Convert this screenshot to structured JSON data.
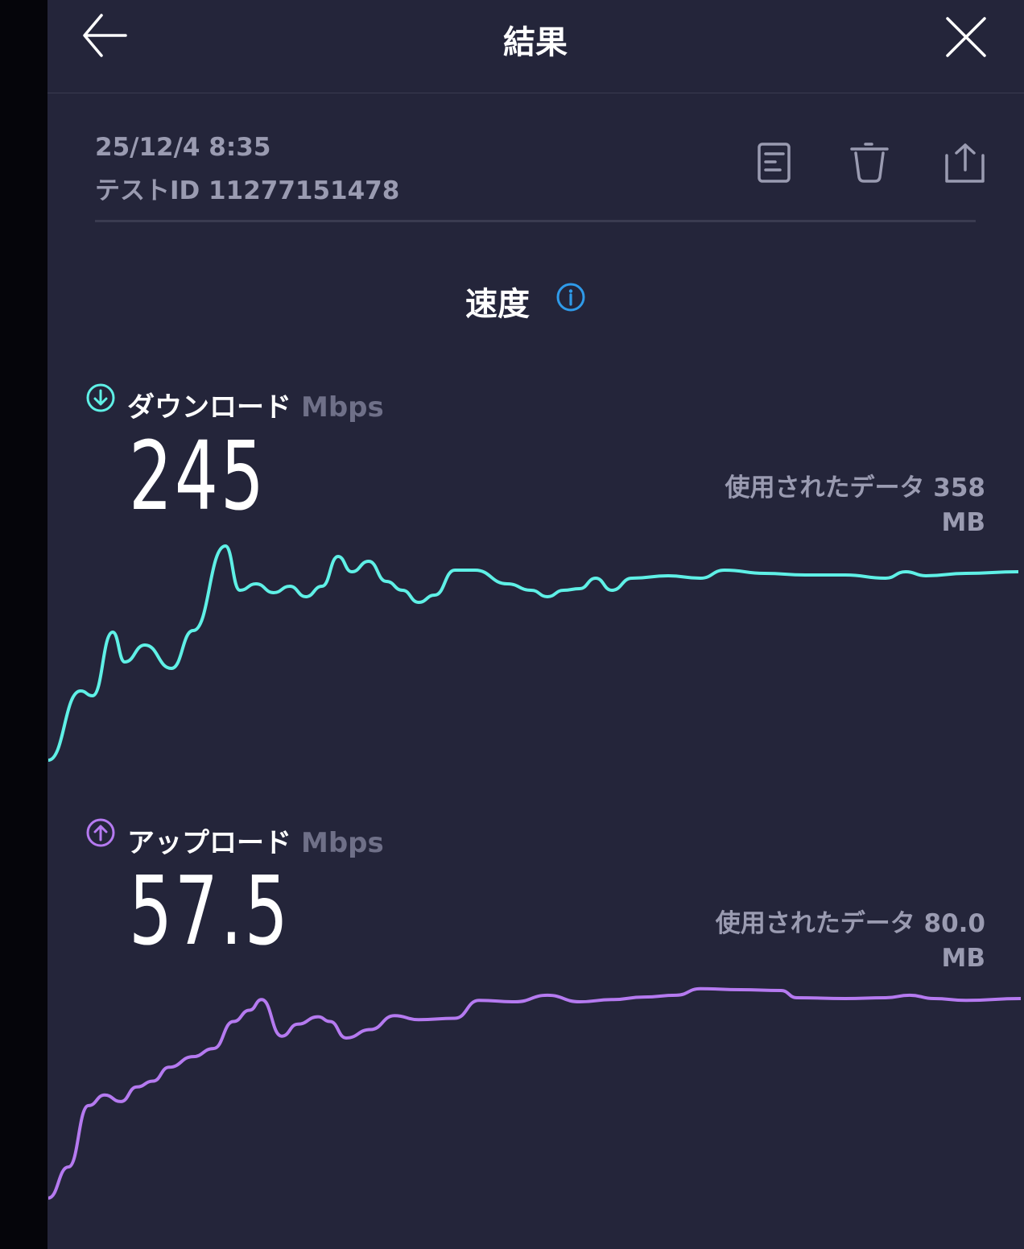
{
  "header": {
    "title": "結果",
    "back_icon": "arrow-left-icon",
    "close_icon": "close-icon"
  },
  "meta": {
    "datetime": "25/12/4 8:35",
    "test_id": "テストID 11277151478"
  },
  "actions": [
    {
      "icon": "document-icon"
    },
    {
      "icon": "trash-icon"
    },
    {
      "icon": "share-icon"
    }
  ],
  "speed": {
    "title": "速度",
    "info_icon": "info-icon"
  },
  "download": {
    "label": "ダウンロード",
    "unit": "Mbps",
    "value": "245",
    "data_used_label": "使用されたデータ 358",
    "data_used_unit": "MB",
    "color": "#5ff0e6"
  },
  "upload": {
    "label": "アップロード",
    "unit": "Mbps",
    "value": "57.5",
    "data_used_label": "使用されたデータ 80.0",
    "data_used_unit": "MB",
    "color": "#b57af0"
  },
  "chart_data": [
    {
      "type": "line",
      "series": [
        {
          "values": [
            16,
            102,
            96,
            175,
            138,
            159,
            130,
            177,
            282,
            227,
            235,
            224,
            232,
            219,
            232,
            269,
            250,
            263,
            238,
            227,
            212,
            221,
            252,
            252,
            235,
            227,
            219,
            227,
            229,
            242,
            227,
            242,
            245,
            242,
            252,
            248,
            246,
            246,
            242,
            250,
            245,
            248,
            250
          ]
        }
      ],
      "ylim": [
        0,
        300
      ],
      "grid": false
    },
    {
      "type": "line",
      "series": [
        {
          "values": [
            2.7,
            11.2,
            28.0,
            30.9,
            29.1,
            33.1,
            34.7,
            38.5,
            41.4,
            43.6,
            51.0,
            54.1,
            57.0,
            47.0,
            50.3,
            52.3,
            51.0,
            46.5,
            48.8,
            52.6,
            51.5,
            51.9,
            56.8,
            56.4,
            58.2,
            56.4,
            57.0,
            57.7,
            58.2,
            60.0,
            59.7,
            59.5,
            57.5,
            57.3,
            57.5,
            58.2,
            57.3,
            56.8,
            57.3
          ]
        }
      ],
      "ylim": [
        0,
        65
      ],
      "grid": false
    }
  ]
}
